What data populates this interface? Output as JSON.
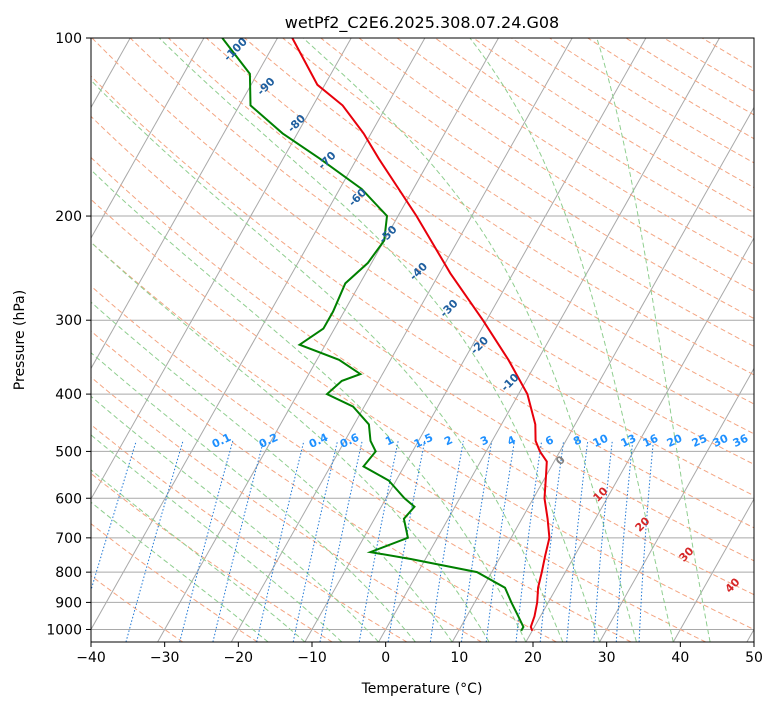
{
  "chart_data": {
    "type": "line",
    "title": "wetPf2_C2E6.2025.308.07.24.G08",
    "xlabel": "Temperature (°C)",
    "ylabel": "Pressure (hPa)",
    "xlim": [
      -40,
      50
    ],
    "ylim": [
      1050,
      100
    ],
    "y_scale": "log",
    "x_ticks": [
      "-40",
      "-30",
      "-20",
      "-10",
      "0",
      "10",
      "20",
      "30",
      "40",
      "50"
    ],
    "y_ticks": [
      "100",
      "200",
      "300",
      "400",
      "500",
      "600",
      "700",
      "800",
      "900",
      "1000"
    ],
    "grid": true,
    "skew": "skew-T log-P",
    "colors": {
      "temperature": "#e8000b",
      "dewpoint": "#008000",
      "dry_adiabat": "#f4a582",
      "moist_adiabat": "#8fce8f",
      "mixing_ratio": "#1f77d4",
      "isotherm_grid": "#a9a9a9",
      "dry_adiabat_label": "#1f5f9f",
      "moist_adiabat_label": "#d62728",
      "mixing_ratio_label": "#1e90ff"
    },
    "series": [
      {
        "name": "",
        "role": "temperature",
        "points": [
          [
            1005,
            20.0
          ],
          [
            990,
            19.5
          ],
          [
            950,
            19.2
          ],
          [
            900,
            18.5
          ],
          [
            850,
            17.5
          ],
          [
            800,
            16.8
          ],
          [
            750,
            16.0
          ],
          [
            700,
            15.2
          ],
          [
            650,
            13.5
          ],
          [
            600,
            11.5
          ],
          [
            550,
            10.0
          ],
          [
            520,
            9.0
          ],
          [
            500,
            7.3
          ],
          [
            480,
            5.9
          ],
          [
            450,
            4.6
          ],
          [
            400,
            1.2
          ],
          [
            350,
            -4.0
          ],
          [
            300,
            -10.5
          ],
          [
            250,
            -18.5
          ],
          [
            200,
            -27.5
          ],
          [
            160,
            -37.0
          ],
          [
            145,
            -41.0
          ],
          [
            130,
            -46.0
          ],
          [
            120,
            -51.0
          ],
          [
            100,
            -58.0
          ]
        ]
      },
      {
        "name": "",
        "role": "dewpoint",
        "points": [
          [
            1005,
            18.5
          ],
          [
            990,
            18.5
          ],
          [
            950,
            17.0
          ],
          [
            900,
            15.0
          ],
          [
            850,
            13.0
          ],
          [
            800,
            8.0
          ],
          [
            760,
            -2.0
          ],
          [
            740,
            -8.0
          ],
          [
            700,
            -4.0
          ],
          [
            650,
            -6.0
          ],
          [
            620,
            -5.5
          ],
          [
            600,
            -7.5
          ],
          [
            560,
            -11.0
          ],
          [
            530,
            -15.5
          ],
          [
            500,
            -15.0
          ],
          [
            480,
            -16.5
          ],
          [
            450,
            -18.0
          ],
          [
            420,
            -21.5
          ],
          [
            400,
            -26.0
          ],
          [
            380,
            -25.0
          ],
          [
            370,
            -23.0
          ],
          [
            350,
            -27.0
          ],
          [
            330,
            -33.5
          ],
          [
            310,
            -31.5
          ],
          [
            290,
            -31.5
          ],
          [
            260,
            -32.0
          ],
          [
            240,
            -30.5
          ],
          [
            220,
            -30.0
          ],
          [
            200,
            -31.5
          ],
          [
            180,
            -37.0
          ],
          [
            160,
            -45.0
          ],
          [
            145,
            -52.0
          ],
          [
            130,
            -58.5
          ],
          [
            115,
            -61.0
          ],
          [
            100,
            -67.5
          ]
        ]
      }
    ],
    "dry_adiabat_labels": [
      "-100",
      "-90",
      "-80",
      "-70",
      "-60",
      "-50",
      "-40",
      "-30",
      "-20",
      "-10"
    ],
    "moist_adiabat_labels": [
      "0",
      "10",
      "20",
      "30",
      "40"
    ],
    "mixing_ratio_labels": [
      "0.1",
      "0.2",
      "0.4",
      "0.6",
      "1",
      "1.5",
      "2",
      "3",
      "4",
      "6",
      "8",
      "10",
      "13",
      "16",
      "20",
      "25",
      "30",
      "36"
    ]
  }
}
